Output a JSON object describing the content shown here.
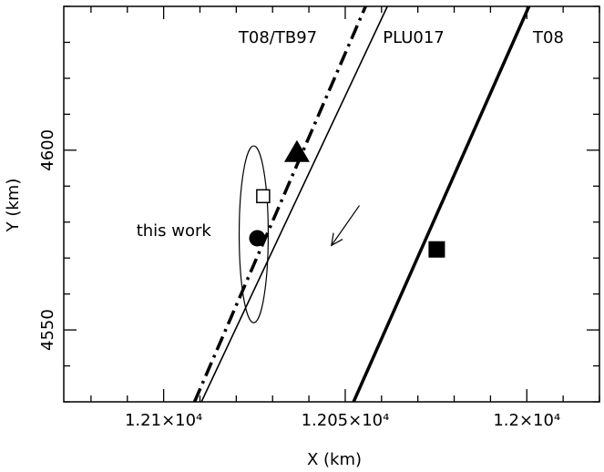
{
  "chart_data": {
    "type": "line",
    "xlabel": "X (km)",
    "ylabel": "Y (km)",
    "xlim": [
      12127.5,
      11980
    ],
    "ylim": [
      4530,
      4640
    ],
    "x_reversed": true,
    "x_ticks": [
      {
        "value": 12100,
        "label": "1.21×10⁴"
      },
      {
        "value": 12050,
        "label": "1.205×10⁴"
      },
      {
        "value": 12000,
        "label": "1.2×10⁴"
      }
    ],
    "y_ticks": [
      {
        "value": 4550,
        "label": "4550"
      },
      {
        "value": 4600,
        "label": "4600"
      }
    ],
    "series": [
      {
        "name": "T08/TB97",
        "style": "dash-dot",
        "width": 3.5,
        "x": [
          12091.5,
          12044.4
        ],
        "y": [
          4530,
          4640
        ]
      },
      {
        "name": "PLU017",
        "style": "solid",
        "width": 1.6,
        "x": [
          12089.6,
          12038.4
        ],
        "y": [
          4530,
          4640
        ]
      },
      {
        "name": "T08",
        "style": "solid",
        "width": 3.5,
        "x": [
          12047.7,
          11999.4
        ],
        "y": [
          4530,
          4640
        ]
      }
    ],
    "line_labels": [
      "T08/TB97",
      "PLU017",
      "T08"
    ],
    "markers": [
      {
        "shape": "filled-circle",
        "x": 12074.2,
        "y": 4575.5
      },
      {
        "shape": "open-square",
        "x": 12072.6,
        "y": 4587.2
      },
      {
        "shape": "filled-triangle",
        "x": 12063.3,
        "y": 4599.5
      },
      {
        "shape": "filled-square",
        "x": 12024.8,
        "y": 4572.4
      }
    ],
    "ellipse": {
      "cx": 12075.2,
      "cy": 4576.6,
      "rx": 4.0,
      "ry": 24.6
    },
    "annotations": [
      {
        "text": "this work",
        "x": 12097.2,
        "y": 4576.1
      }
    ],
    "arrow": {
      "from": [
        12046.1,
        4584.6
      ],
      "to": [
        12053.8,
        4573.5
      ]
    }
  }
}
